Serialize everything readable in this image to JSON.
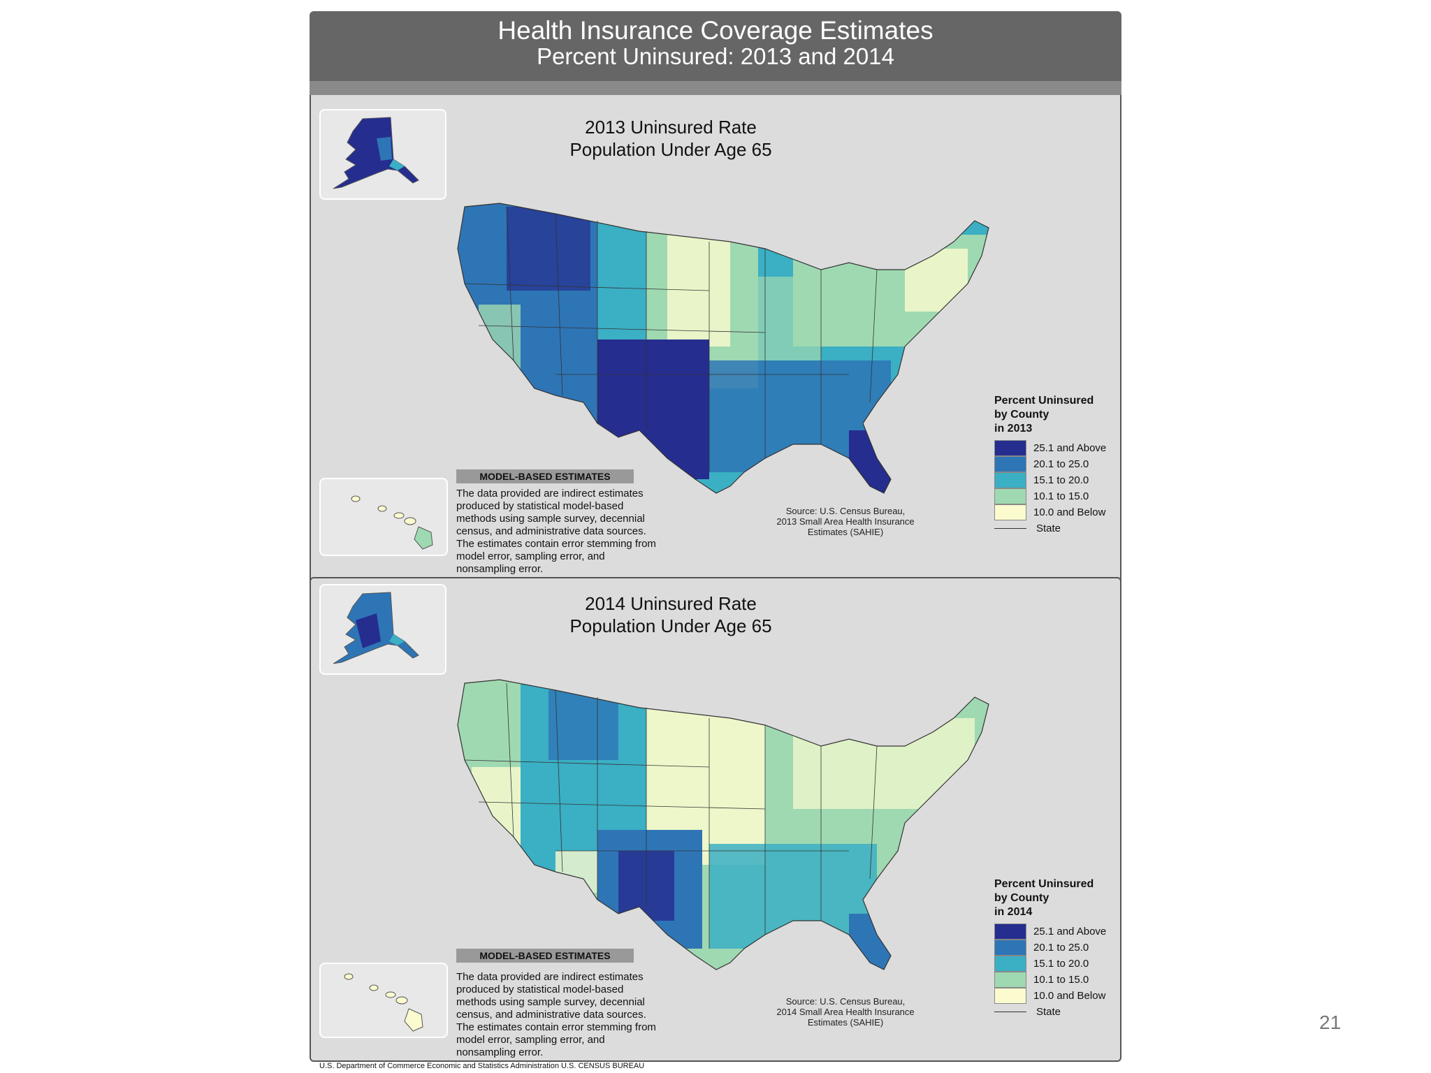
{
  "header": {
    "title": "Health Insurance Coverage Estimates",
    "subtitle": "Percent Uninsured: 2013 and 2014"
  },
  "maps": [
    {
      "title_line1": "2013 Uninsured Rate",
      "title_line2": "Population Under Age 65",
      "legend_title": [
        "Percent Uninsured",
        "by County",
        "in 2013"
      ],
      "source": [
        "Source: U.S. Census Bureau,",
        "2013 Small Area Health Insurance",
        "Estimates (SAHIE)"
      ]
    },
    {
      "title_line1": "2014 Uninsured Rate",
      "title_line2": "Population Under Age 65",
      "legend_title": [
        "Percent Uninsured",
        "by County",
        "in 2014"
      ],
      "source": [
        "Source: U.S. Census Bureau,",
        "2014 Small Area Health Insurance",
        "Estimates (SAHIE)"
      ]
    }
  ],
  "legend": {
    "classes": [
      {
        "label": "25.1 and Above",
        "color": "#252d8f"
      },
      {
        "label": "20.1 to 25.0",
        "color": "#2e75b6"
      },
      {
        "label": "15.1 to 20.0",
        "color": "#3bafc4"
      },
      {
        "label": "10.1 to 15.0",
        "color": "#9fd9b1"
      },
      {
        "label": "10.0 and Below",
        "color": "#fbfbcf"
      }
    ],
    "state_label": "State"
  },
  "model_note": {
    "heading": "MODEL-BASED ESTIMATES",
    "lines": [
      "The data provided are indirect estimates",
      "produced by statistical model-based",
      "methods using sample survey, decennial",
      "census, and administrative data sources.",
      "The estimates contain error stemming from",
      "model error, sampling error, and",
      "nonsampling error."
    ]
  },
  "footer": "U.S. Department of Commerce  Economic and Statistics Administration  U.S. CENSUS BUREAU",
  "page_number": "21"
}
